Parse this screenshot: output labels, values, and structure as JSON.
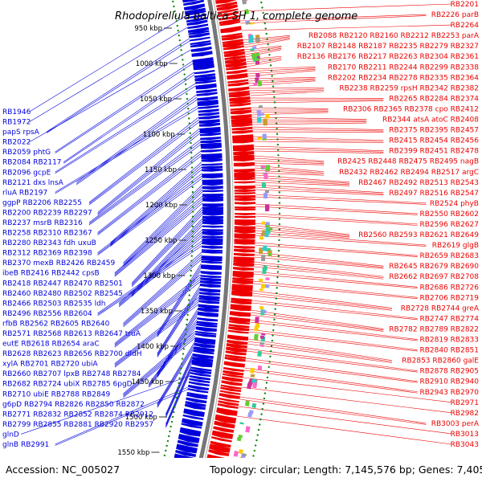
{
  "title": "Rhodopirellula baltica SH 1, complete genome",
  "footer": {
    "accession": "Accession: NC_005027",
    "stats": "Topology: circular; Length: 7,145,576 bp; Genes: 7,405"
  },
  "colors": {
    "forward": "#ee0000",
    "reverse": "#0000dd",
    "backbone": "#777777",
    "dots": "#118811"
  },
  "scale": {
    "labels": [
      "950 kbp",
      "1000 kbp",
      "1050 kbp",
      "1100 kbp",
      "1150 kbp",
      "1200 kbp",
      "1250 kbp",
      "1300 kbp",
      "1350 kbp",
      "1400 kbp",
      "1450 kbp",
      "1500 kbp",
      "1550 kbp"
    ]
  },
  "left_labels": [
    [
      "RB1946"
    ],
    [
      "RB1972"
    ],
    [
      "papS",
      "rpsA"
    ],
    [
      "RB2022"
    ],
    [
      "RB2059",
      "phtG"
    ],
    [
      "RB2084",
      "RB2117"
    ],
    [
      "RB2096",
      "gcpE"
    ],
    [
      "RB2121",
      "dxs",
      "lnsA"
    ],
    [
      "rluA",
      "RB2197"
    ],
    [
      "ggpP",
      "RB2206",
      "RB2255"
    ],
    [
      "RB2200",
      "RB2239",
      "RB2297"
    ],
    [
      "RB2237",
      "msrB",
      "RB2316"
    ],
    [
      "RB2258",
      "RB2310",
      "RB2367"
    ],
    [
      "RB2280",
      "RB2343",
      "fdh",
      "uxuB"
    ],
    [
      "RB2312",
      "RB2369",
      "RB2398"
    ],
    [
      "RB2370",
      "mexB",
      "RB2426",
      "RB2459"
    ],
    [
      "ibeB",
      "RB2416",
      "RB2442",
      "cpsB"
    ],
    [
      "RB2418",
      "RB2447",
      "RB2470",
      "RB2501"
    ],
    [
      "RB2460",
      "RB2480",
      "RB2502",
      "RB2545"
    ],
    [
      "RB2466",
      "RB2503",
      "RB2535",
      "ldh"
    ],
    [
      "RB2496",
      "RB2556",
      "RB2604"
    ],
    [
      "rfbB",
      "RB2562",
      "RB2605",
      "RB2640"
    ],
    [
      "RB2571",
      "RB2568",
      "RB2613",
      "RB2647",
      "truA"
    ],
    [
      "eutE",
      "RB2618",
      "RB2654",
      "araC"
    ],
    [
      "RB2628",
      "RB2623",
      "RB2656",
      "RB2700",
      "dldH"
    ],
    [
      "xylA",
      "RB2701",
      "RB2720",
      "ubiA"
    ],
    [
      "RB2660",
      "RB2707",
      "lpxB",
      "RB2748",
      "RB2784"
    ],
    [
      "RB2682",
      "RB2724",
      "ubiX",
      "RB2785",
      "6pgD"
    ],
    [
      "RB2710",
      "ubiE",
      "RB2788",
      "RB2849"
    ],
    [
      "g6pD",
      "RB2794",
      "RB2826",
      "RB2850",
      "RB2872"
    ],
    [
      "RB2771",
      "RB2832",
      "RB2852",
      "RB2874",
      "RB2912"
    ],
    [
      "RB2799",
      "RB2855",
      "RB2881",
      "RB2920",
      "RB2957"
    ],
    [
      "glnD"
    ],
    [
      "glnB",
      "RB2991"
    ]
  ],
  "right_labels": [
    [
      "RB2201"
    ],
    [
      "RB2226",
      "parB"
    ],
    [
      "RB2264"
    ],
    [
      "RB2088",
      "RB2120",
      "RB2160",
      "RB2212",
      "RB2253",
      "parA"
    ],
    [
      "RB2107",
      "RB2148",
      "RB2187",
      "RB2235",
      "RB2279",
      "RB2327"
    ],
    [
      "RB2136",
      "RB2176",
      "RB2217",
      "RB2263",
      "RB2304",
      "RB2361"
    ],
    [
      "RB2170",
      "RB2211",
      "RB2244",
      "RB2299",
      "RB2338"
    ],
    [
      "RB2202",
      "RB2234",
      "RB2278",
      "RB2335",
      "RB2364"
    ],
    [
      "RB2238",
      "RB2259",
      "rpsH",
      "RB2342",
      "RB2382"
    ],
    [
      "RB2265",
      "RB2284",
      "RB2374"
    ],
    [
      "RB2306",
      "RB2365",
      "RB2378",
      "cpo",
      "RB2412"
    ],
    [
      "RB2344",
      "atsA",
      "atoC",
      "RB2408"
    ],
    [
      "RB2375",
      "RB2395",
      "RB2457"
    ],
    [
      "RB2415",
      "RB2454",
      "RB2456"
    ],
    [
      "RB2399",
      "RB2451",
      "RB2478"
    ],
    [
      "RB2425",
      "RB2448",
      "RB2475",
      "RB2495",
      "nagB"
    ],
    [
      "RB2432",
      "RB2462",
      "RB2494",
      "RB2517",
      "argC"
    ],
    [
      "RB2467",
      "RB2492",
      "RB2513",
      "RB2543"
    ],
    [
      "RB2497",
      "RB2516",
      "RB2547"
    ],
    [
      "RB2524",
      "phyB"
    ],
    [
      "RB2550",
      "RB2602"
    ],
    [
      "RB2596",
      "RB2627"
    ],
    [
      "RB2560",
      "RB2593",
      "RB2621",
      "RB2649"
    ],
    [
      "RB2619",
      "glgB"
    ],
    [
      "RB2659",
      "RB2683"
    ],
    [
      "RB2645",
      "RB2679",
      "RB2690"
    ],
    [
      "RB2662",
      "RB2697",
      "RB2708"
    ],
    [
      "RB2686",
      "RB2726"
    ],
    [
      "RB2706",
      "RB2719"
    ],
    [
      "RB2728",
      "RB2744",
      "greA"
    ],
    [
      "RB2747",
      "RB2774"
    ],
    [
      "RB2782",
      "RB2789",
      "RB2822"
    ],
    [
      "RB2819",
      "RB2833"
    ],
    [
      "RB2840",
      "RB2851"
    ],
    [
      "RB2853",
      "RB2860",
      "galE"
    ],
    [
      "RB2878",
      "RB2905"
    ],
    [
      "RB2910",
      "RB2940"
    ],
    [
      "RB2943",
      "RB2970"
    ],
    [
      "RB2971"
    ],
    [
      "RB2982"
    ],
    [
      "RB3003",
      "perA"
    ],
    [
      "RB3013"
    ],
    [
      "RB3043"
    ]
  ]
}
